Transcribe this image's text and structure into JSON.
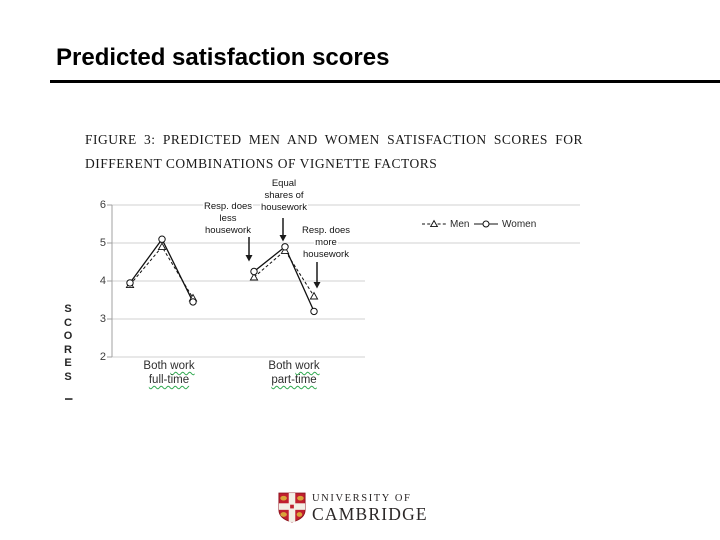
{
  "slide": {
    "title": "Predicted satisfaction scores"
  },
  "figure_caption": {
    "line1": "FIGURE 3: PREDICTED MEN AND WOMEN SATISFACTION SCORES FOR",
    "line2": "DIFFERENT COMBINATIONS OF VIGNETTE FACTORS"
  },
  "chart_data": {
    "type": "line",
    "title": "Figure 3: Predicted men and women satisfaction scores for different combinations of vignette factors",
    "ylabel": "SCORES",
    "ylabel_fragment": "I",
    "yticks": [
      6,
      5,
      4,
      3,
      2
    ],
    "ylim": [
      2,
      6
    ],
    "grid": true,
    "legend_position": "inside-top-right",
    "groups": [
      "Both work full-time",
      "Both work part-time"
    ],
    "conditions": [
      "Resp. does less housework",
      "Equal shares of housework",
      "Resp. does more housework"
    ],
    "series": [
      {
        "name": "Men",
        "line": "dashed",
        "marker": "triangle",
        "values": [
          3.9,
          4.9,
          3.55,
          4.1,
          4.8,
          3.6
        ]
      },
      {
        "name": "Women",
        "line": "solid",
        "marker": "circle",
        "values": [
          3.95,
          5.1,
          3.45,
          4.25,
          4.9,
          3.2
        ]
      }
    ]
  },
  "annotations": [
    {
      "lines": [
        "Resp. does",
        "less",
        "housework"
      ]
    },
    {
      "lines": [
        "Equal",
        "shares of",
        "housework"
      ]
    },
    {
      "lines": [
        "Resp. does",
        "more",
        "housework"
      ]
    }
  ],
  "xlabels": [
    {
      "plain": "Both",
      "wavy1": "work",
      "wavy2": "full-time"
    },
    {
      "plain": "Both",
      "wavy1": "work",
      "wavy2": "part-time"
    }
  ],
  "logo": {
    "line1": "UNIVERSITY OF",
    "line2": "CAMBRIDGE"
  },
  "colors": {
    "title": "#000000",
    "grid": "#d9d9d9",
    "axis": "#a0a0a0",
    "series": "#111111",
    "squiggle": "#2fa84f",
    "logo_red": "#c01f2f",
    "logo_gold": "#d9a43a",
    "logo_text": "#2b2727"
  }
}
